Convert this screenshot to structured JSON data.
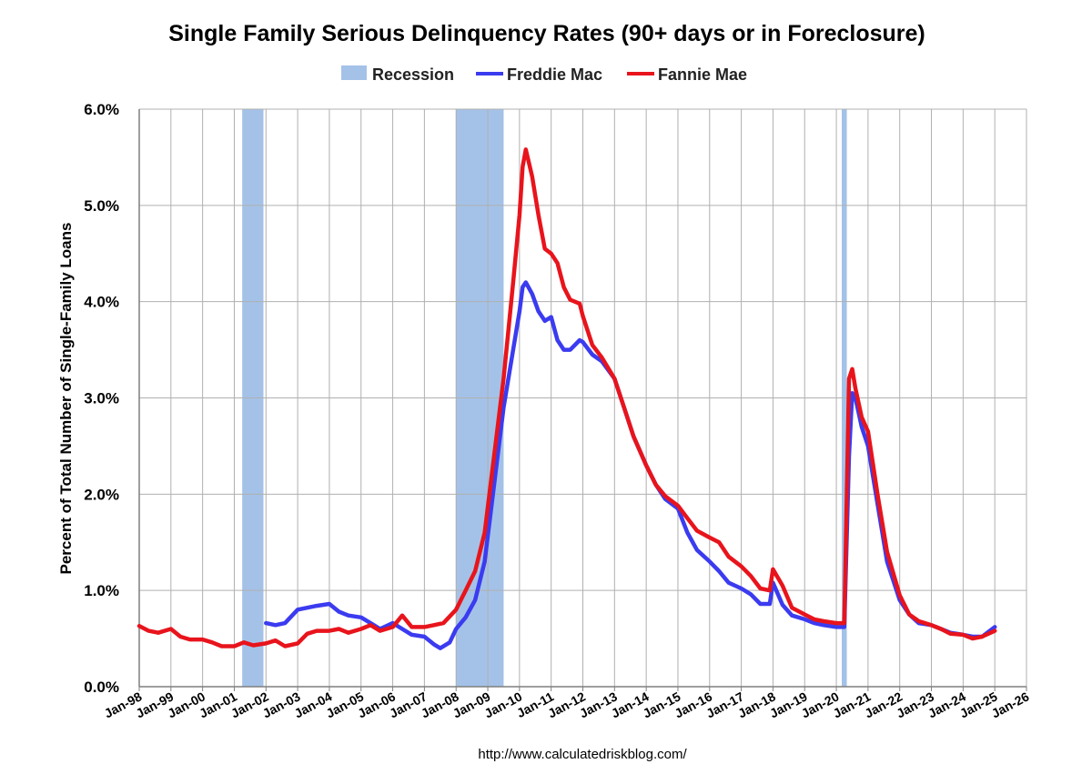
{
  "colors": {
    "recession": "#a4c2e8",
    "freddie": "#3b3bf0",
    "fannie": "#e8141c",
    "grid": "#b0b0b0",
    "axis": "#7f7f7f"
  },
  "chart_data": {
    "type": "line",
    "title": "Single Family Serious Delinquency Rates (90+ days or in Foreclosure)",
    "xlabel": "",
    "ylabel": "Percent of Total Number of Single-Family Loans",
    "xlim": [
      1998.0,
      2026.0
    ],
    "ylim": [
      0,
      6
    ],
    "grid": true,
    "legend_position": "top-center",
    "legend": [
      "Recession",
      "Freddie Mac",
      "Fannie Mae"
    ],
    "y_ticks": [
      {
        "value": 0,
        "label": "0.0%"
      },
      {
        "value": 1,
        "label": "1.0%"
      },
      {
        "value": 2,
        "label": "2.0%"
      },
      {
        "value": 3,
        "label": "3.0%"
      },
      {
        "value": 4,
        "label": "4.0%"
      },
      {
        "value": 5,
        "label": "5.0%"
      },
      {
        "value": 6,
        "label": "6.0%"
      }
    ],
    "x_ticks": [
      {
        "value": 1998,
        "label": "Jan-98"
      },
      {
        "value": 1999,
        "label": "Jan-99"
      },
      {
        "value": 2000,
        "label": "Jan-00"
      },
      {
        "value": 2001,
        "label": "Jan-01"
      },
      {
        "value": 2002,
        "label": "Jan-02"
      },
      {
        "value": 2003,
        "label": "Jan-03"
      },
      {
        "value": 2004,
        "label": "Jan-04"
      },
      {
        "value": 2005,
        "label": "Jan-05"
      },
      {
        "value": 2006,
        "label": "Jan-06"
      },
      {
        "value": 2007,
        "label": "Jan-07"
      },
      {
        "value": 2008,
        "label": "Jan-08"
      },
      {
        "value": 2009,
        "label": "Jan-09"
      },
      {
        "value": 2010,
        "label": "Jan-10"
      },
      {
        "value": 2011,
        "label": "Jan-11"
      },
      {
        "value": 2012,
        "label": "Jan-12"
      },
      {
        "value": 2013,
        "label": "Jan-13"
      },
      {
        "value": 2014,
        "label": "Jan-14"
      },
      {
        "value": 2015,
        "label": "Jan-15"
      },
      {
        "value": 2016,
        "label": "Jan-16"
      },
      {
        "value": 2017,
        "label": "Jan-17"
      },
      {
        "value": 2018,
        "label": "Jan-18"
      },
      {
        "value": 2019,
        "label": "Jan-19"
      },
      {
        "value": 2020,
        "label": "Jan-20"
      },
      {
        "value": 2021,
        "label": "Jan-21"
      },
      {
        "value": 2022,
        "label": "Jan-22"
      },
      {
        "value": 2023,
        "label": "Jan-23"
      },
      {
        "value": 2024,
        "label": "Jan-24"
      },
      {
        "value": 2025,
        "label": "Jan-25"
      },
      {
        "value": 2026,
        "label": "Jan-26"
      }
    ],
    "recessions": [
      {
        "start": 2001.25,
        "end": 2001.92
      },
      {
        "start": 2008.0,
        "end": 2009.5
      },
      {
        "start": 2020.17,
        "end": 2020.33
      }
    ],
    "series": [
      {
        "name": "Freddie Mac",
        "x": [
          2002.0,
          2002.3,
          2002.6,
          2003.0,
          2003.3,
          2003.6,
          2004.0,
          2004.3,
          2004.6,
          2005.0,
          2005.3,
          2005.6,
          2006.0,
          2006.3,
          2006.6,
          2007.0,
          2007.3,
          2007.5,
          2007.8,
          2008.0,
          2008.3,
          2008.6,
          2008.9,
          2009.2,
          2009.5,
          2009.8,
          2010.0,
          2010.1,
          2010.2,
          2010.4,
          2010.6,
          2010.8,
          2011.0,
          2011.2,
          2011.4,
          2011.6,
          2011.9,
          2012.0,
          2012.3,
          2012.6,
          2013.0,
          2013.3,
          2013.6,
          2014.0,
          2014.3,
          2014.6,
          2015.0,
          2015.3,
          2015.6,
          2016.0,
          2016.3,
          2016.6,
          2017.0,
          2017.3,
          2017.6,
          2017.9,
          2018.0,
          2018.3,
          2018.6,
          2019.0,
          2019.3,
          2019.6,
          2020.0,
          2020.25,
          2020.4,
          2020.5,
          2020.6,
          2020.8,
          2021.0,
          2021.3,
          2021.6,
          2022.0,
          2022.3,
          2022.6,
          2023.0,
          2023.3,
          2023.6,
          2024.0,
          2024.3,
          2024.6,
          2025.0
        ],
        "values": [
          0.66,
          0.64,
          0.66,
          0.8,
          0.82,
          0.84,
          0.86,
          0.78,
          0.74,
          0.72,
          0.66,
          0.6,
          0.66,
          0.6,
          0.54,
          0.52,
          0.44,
          0.4,
          0.46,
          0.6,
          0.72,
          0.9,
          1.3,
          2.1,
          2.9,
          3.5,
          3.9,
          4.15,
          4.2,
          4.08,
          3.9,
          3.8,
          3.84,
          3.6,
          3.5,
          3.5,
          3.6,
          3.58,
          3.45,
          3.38,
          3.2,
          2.9,
          2.6,
          2.3,
          2.1,
          1.95,
          1.85,
          1.6,
          1.42,
          1.3,
          1.2,
          1.08,
          1.02,
          0.96,
          0.86,
          0.86,
          1.08,
          0.85,
          0.74,
          0.7,
          0.66,
          0.64,
          0.62,
          0.62,
          2.4,
          3.05,
          3.0,
          2.7,
          2.5,
          1.9,
          1.3,
          0.9,
          0.75,
          0.66,
          0.64,
          0.6,
          0.56,
          0.54,
          0.52,
          0.52,
          0.62
        ]
      },
      {
        "name": "Fannie Mae",
        "x": [
          1998.0,
          1998.3,
          1998.6,
          1999.0,
          1999.3,
          1999.6,
          2000.0,
          2000.3,
          2000.6,
          2001.0,
          2001.3,
          2001.6,
          2002.0,
          2002.3,
          2002.6,
          2003.0,
          2003.3,
          2003.6,
          2004.0,
          2004.3,
          2004.6,
          2005.0,
          2005.3,
          2005.6,
          2006.0,
          2006.3,
          2006.6,
          2007.0,
          2007.3,
          2007.6,
          2008.0,
          2008.3,
          2008.6,
          2008.9,
          2009.2,
          2009.5,
          2009.8,
          2010.0,
          2010.1,
          2010.2,
          2010.4,
          2010.6,
          2010.8,
          2011.0,
          2011.2,
          2011.4,
          2011.6,
          2011.9,
          2012.0,
          2012.3,
          2012.6,
          2013.0,
          2013.3,
          2013.6,
          2014.0,
          2014.3,
          2014.6,
          2015.0,
          2015.3,
          2015.6,
          2016.0,
          2016.3,
          2016.6,
          2017.0,
          2017.3,
          2017.6,
          2017.9,
          2018.0,
          2018.3,
          2018.6,
          2019.0,
          2019.3,
          2019.6,
          2020.0,
          2020.25,
          2020.4,
          2020.5,
          2020.6,
          2020.8,
          2021.0,
          2021.3,
          2021.6,
          2022.0,
          2022.3,
          2022.6,
          2023.0,
          2023.3,
          2023.6,
          2024.0,
          2024.3,
          2024.6,
          2025.0
        ],
        "values": [
          0.63,
          0.58,
          0.56,
          0.6,
          0.52,
          0.49,
          0.49,
          0.46,
          0.42,
          0.42,
          0.46,
          0.43,
          0.45,
          0.48,
          0.42,
          0.45,
          0.55,
          0.58,
          0.58,
          0.6,
          0.56,
          0.6,
          0.64,
          0.58,
          0.62,
          0.74,
          0.62,
          0.62,
          0.64,
          0.66,
          0.8,
          1.0,
          1.2,
          1.6,
          2.4,
          3.2,
          4.2,
          4.9,
          5.4,
          5.58,
          5.3,
          4.9,
          4.55,
          4.5,
          4.4,
          4.15,
          4.02,
          3.98,
          3.85,
          3.55,
          3.42,
          3.2,
          2.9,
          2.6,
          2.3,
          2.1,
          1.98,
          1.88,
          1.75,
          1.62,
          1.55,
          1.5,
          1.35,
          1.25,
          1.15,
          1.02,
          1.0,
          1.22,
          1.05,
          0.82,
          0.75,
          0.7,
          0.68,
          0.66,
          0.66,
          3.2,
          3.3,
          3.1,
          2.8,
          2.65,
          2.0,
          1.4,
          0.95,
          0.75,
          0.68,
          0.64,
          0.6,
          0.55,
          0.54,
          0.5,
          0.52,
          0.58
        ]
      }
    ],
    "source": "http://www.calculatedriskblog.com/"
  }
}
